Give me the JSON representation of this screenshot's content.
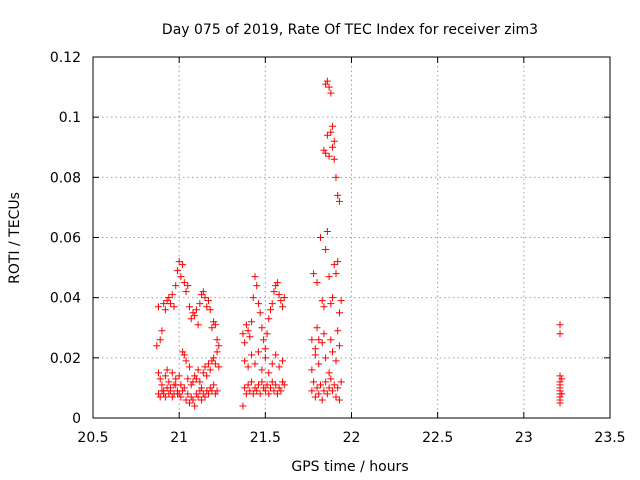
{
  "chart_data": {
    "type": "scatter",
    "title": "Day 075 of 2019, Rate Of TEC Index for receiver zim3",
    "xlabel": "GPS time / hours",
    "ylabel": "ROTI / TECUs",
    "xlim": [
      20.5,
      23.5
    ],
    "ylim": [
      0,
      0.12
    ],
    "xticks": [
      20.5,
      21,
      21.5,
      22,
      22.5,
      23,
      23.5
    ],
    "xtick_labels": [
      "20.5",
      "21",
      "21.5",
      "22",
      "22.5",
      "23",
      "23.5"
    ],
    "yticks": [
      0,
      0.02,
      0.04,
      0.06,
      0.08,
      0.1,
      0.12
    ],
    "ytick_labels": [
      "0",
      "0.02",
      "0.04",
      "0.06",
      "0.08",
      "0.1",
      "0.12"
    ],
    "grid": true,
    "marker": "+",
    "color": "#ff0000",
    "series": [
      {
        "name": "ROTI",
        "points": [
          [
            20.87,
            0.024
          ],
          [
            20.88,
            0.037
          ],
          [
            20.89,
            0.026
          ],
          [
            20.9,
            0.029
          ],
          [
            20.91,
            0.038
          ],
          [
            20.92,
            0.036
          ],
          [
            20.93,
            0.039
          ],
          [
            20.94,
            0.04
          ],
          [
            20.95,
            0.038
          ],
          [
            20.96,
            0.041
          ],
          [
            20.97,
            0.037
          ],
          [
            20.98,
            0.044
          ],
          [
            20.99,
            0.049
          ],
          [
            21.0,
            0.052
          ],
          [
            21.01,
            0.047
          ],
          [
            21.02,
            0.051
          ],
          [
            21.03,
            0.045
          ],
          [
            21.04,
            0.042
          ],
          [
            21.05,
            0.044
          ],
          [
            21.06,
            0.037
          ],
          [
            21.07,
            0.033
          ],
          [
            21.08,
            0.035
          ],
          [
            21.09,
            0.034
          ],
          [
            21.1,
            0.036
          ],
          [
            21.11,
            0.031
          ],
          [
            21.12,
            0.038
          ],
          [
            21.13,
            0.041
          ],
          [
            21.14,
            0.042
          ],
          [
            21.15,
            0.04
          ],
          [
            21.16,
            0.037
          ],
          [
            21.17,
            0.039
          ],
          [
            21.18,
            0.036
          ],
          [
            21.19,
            0.03
          ],
          [
            21.2,
            0.032
          ],
          [
            21.21,
            0.031
          ],
          [
            21.22,
            0.026
          ],
          [
            21.23,
            0.024
          ],
          [
            20.88,
            0.015
          ],
          [
            20.89,
            0.013
          ],
          [
            20.9,
            0.011
          ],
          [
            20.91,
            0.009
          ],
          [
            20.92,
            0.014
          ],
          [
            20.93,
            0.016
          ],
          [
            20.94,
            0.012
          ],
          [
            20.95,
            0.01
          ],
          [
            20.96,
            0.015
          ],
          [
            20.97,
            0.011
          ],
          [
            20.98,
            0.013
          ],
          [
            20.99,
            0.008
          ],
          [
            21.0,
            0.014
          ],
          [
            21.01,
            0.011
          ],
          [
            21.02,
            0.022
          ],
          [
            21.03,
            0.021
          ],
          [
            21.04,
            0.019
          ],
          [
            21.05,
            0.013
          ],
          [
            21.06,
            0.017
          ],
          [
            21.07,
            0.011
          ],
          [
            21.08,
            0.012
          ],
          [
            21.09,
            0.014
          ],
          [
            21.1,
            0.013
          ],
          [
            21.11,
            0.016
          ],
          [
            21.12,
            0.012
          ],
          [
            21.13,
            0.01
          ],
          [
            21.14,
            0.015
          ],
          [
            21.15,
            0.017
          ],
          [
            21.16,
            0.014
          ],
          [
            21.17,
            0.018
          ],
          [
            21.18,
            0.016
          ],
          [
            21.19,
            0.019
          ],
          [
            21.2,
            0.02
          ],
          [
            21.21,
            0.018
          ],
          [
            21.22,
            0.022
          ],
          [
            21.23,
            0.017
          ],
          [
            20.88,
            0.008
          ],
          [
            20.89,
            0.007
          ],
          [
            20.9,
            0.009
          ],
          [
            20.91,
            0.008
          ],
          [
            20.92,
            0.007
          ],
          [
            20.93,
            0.01
          ],
          [
            20.94,
            0.008
          ],
          [
            20.95,
            0.009
          ],
          [
            20.96,
            0.007
          ],
          [
            20.97,
            0.008
          ],
          [
            20.98,
            0.011
          ],
          [
            20.99,
            0.009
          ],
          [
            21.0,
            0.008
          ],
          [
            21.01,
            0.007
          ],
          [
            21.02,
            0.009
          ],
          [
            21.03,
            0.01
          ],
          [
            21.04,
            0.006
          ],
          [
            21.05,
            0.008
          ],
          [
            21.06,
            0.005
          ],
          [
            21.07,
            0.007
          ],
          [
            21.08,
            0.006
          ],
          [
            21.09,
            0.004
          ],
          [
            21.1,
            0.008
          ],
          [
            21.11,
            0.007
          ],
          [
            21.12,
            0.009
          ],
          [
            21.13,
            0.006
          ],
          [
            21.14,
            0.008
          ],
          [
            21.15,
            0.007
          ],
          [
            21.16,
            0.009
          ],
          [
            21.17,
            0.008
          ],
          [
            21.18,
            0.01
          ],
          [
            21.19,
            0.009
          ],
          [
            21.2,
            0.011
          ],
          [
            21.21,
            0.008
          ],
          [
            21.22,
            0.009
          ],
          [
            21.37,
            0.004
          ],
          [
            21.38,
            0.01
          ],
          [
            21.39,
            0.008
          ],
          [
            21.4,
            0.011
          ],
          [
            21.41,
            0.009
          ],
          [
            21.42,
            0.012
          ],
          [
            21.43,
            0.008
          ],
          [
            21.44,
            0.01
          ],
          [
            21.45,
            0.009
          ],
          [
            21.46,
            0.011
          ],
          [
            21.47,
            0.008
          ],
          [
            21.48,
            0.012
          ],
          [
            21.49,
            0.01
          ],
          [
            21.5,
            0.009
          ],
          [
            21.51,
            0.011
          ],
          [
            21.52,
            0.008
          ],
          [
            21.53,
            0.01
          ],
          [
            21.54,
            0.012
          ],
          [
            21.55,
            0.009
          ],
          [
            21.56,
            0.011
          ],
          [
            21.57,
            0.008
          ],
          [
            21.58,
            0.01
          ],
          [
            21.59,
            0.009
          ],
          [
            21.6,
            0.012
          ],
          [
            21.61,
            0.011
          ],
          [
            21.37,
            0.028
          ],
          [
            21.38,
            0.025
          ],
          [
            21.39,
            0.031
          ],
          [
            21.4,
            0.029
          ],
          [
            21.41,
            0.027
          ],
          [
            21.42,
            0.032
          ],
          [
            21.43,
            0.04
          ],
          [
            21.44,
            0.047
          ],
          [
            21.45,
            0.044
          ],
          [
            21.46,
            0.038
          ],
          [
            21.47,
            0.035
          ],
          [
            21.48,
            0.03
          ],
          [
            21.49,
            0.026
          ],
          [
            21.5,
            0.023
          ],
          [
            21.51,
            0.028
          ],
          [
            21.52,
            0.033
          ],
          [
            21.53,
            0.036
          ],
          [
            21.54,
            0.038
          ],
          [
            21.55,
            0.042
          ],
          [
            21.56,
            0.044
          ],
          [
            21.57,
            0.045
          ],
          [
            21.58,
            0.041
          ],
          [
            21.59,
            0.039
          ],
          [
            21.6,
            0.037
          ],
          [
            21.61,
            0.04
          ],
          [
            21.38,
            0.019
          ],
          [
            21.4,
            0.017
          ],
          [
            21.42,
            0.021
          ],
          [
            21.44,
            0.018
          ],
          [
            21.46,
            0.022
          ],
          [
            21.48,
            0.016
          ],
          [
            21.5,
            0.02
          ],
          [
            21.52,
            0.015
          ],
          [
            21.54,
            0.018
          ],
          [
            21.56,
            0.021
          ],
          [
            21.58,
            0.017
          ],
          [
            21.6,
            0.019
          ],
          [
            21.77,
            0.026
          ],
          [
            21.78,
            0.048
          ],
          [
            21.79,
            0.021
          ],
          [
            21.8,
            0.045
          ],
          [
            21.81,
            0.026
          ],
          [
            21.82,
            0.06
          ],
          [
            21.83,
            0.039
          ],
          [
            21.84,
            0.037
          ],
          [
            21.85,
            0.056
          ],
          [
            21.86,
            0.062
          ],
          [
            21.87,
            0.047
          ],
          [
            21.88,
            0.038
          ],
          [
            21.89,
            0.04
          ],
          [
            21.9,
            0.051
          ],
          [
            21.91,
            0.048
          ],
          [
            21.92,
            0.052
          ],
          [
            21.93,
            0.035
          ],
          [
            21.94,
            0.039
          ],
          [
            21.84,
            0.089
          ],
          [
            21.85,
            0.088
          ],
          [
            21.86,
            0.094
          ],
          [
            21.87,
            0.087
          ],
          [
            21.88,
            0.095
          ],
          [
            21.89,
            0.09
          ],
          [
            21.9,
            0.086
          ],
          [
            21.91,
            0.08
          ],
          [
            21.92,
            0.074
          ],
          [
            21.93,
            0.072
          ],
          [
            21.85,
            0.111
          ],
          [
            21.86,
            0.112
          ],
          [
            21.87,
            0.11
          ],
          [
            21.88,
            0.108
          ],
          [
            21.89,
            0.097
          ],
          [
            21.9,
            0.092
          ],
          [
            21.77,
            0.009
          ],
          [
            21.78,
            0.012
          ],
          [
            21.79,
            0.007
          ],
          [
            21.8,
            0.01
          ],
          [
            21.81,
            0.008
          ],
          [
            21.82,
            0.011
          ],
          [
            21.83,
            0.006
          ],
          [
            21.84,
            0.009
          ],
          [
            21.85,
            0.012
          ],
          [
            21.86,
            0.008
          ],
          [
            21.87,
            0.01
          ],
          [
            21.88,
            0.013
          ],
          [
            21.89,
            0.009
          ],
          [
            21.9,
            0.011
          ],
          [
            21.91,
            0.007
          ],
          [
            21.92,
            0.01
          ],
          [
            21.93,
            0.006
          ],
          [
            21.94,
            0.012
          ],
          [
            21.77,
            0.016
          ],
          [
            21.79,
            0.023
          ],
          [
            21.81,
            0.018
          ],
          [
            21.83,
            0.025
          ],
          [
            21.85,
            0.02
          ],
          [
            21.87,
            0.015
          ],
          [
            21.89,
            0.022
          ],
          [
            21.91,
            0.019
          ],
          [
            21.93,
            0.024
          ],
          [
            21.8,
            0.03
          ],
          [
            21.84,
            0.028
          ],
          [
            21.88,
            0.026
          ],
          [
            21.92,
            0.029
          ],
          [
            23.21,
            0.031
          ],
          [
            23.21,
            0.028
          ],
          [
            23.21,
            0.014
          ],
          [
            23.21,
            0.012
          ],
          [
            23.21,
            0.011
          ],
          [
            23.21,
            0.01
          ],
          [
            23.21,
            0.009
          ],
          [
            23.21,
            0.008
          ],
          [
            23.21,
            0.007
          ],
          [
            23.21,
            0.006
          ],
          [
            23.21,
            0.005
          ],
          [
            23.22,
            0.013
          ],
          [
            23.22,
            0.008
          ]
        ]
      }
    ]
  }
}
